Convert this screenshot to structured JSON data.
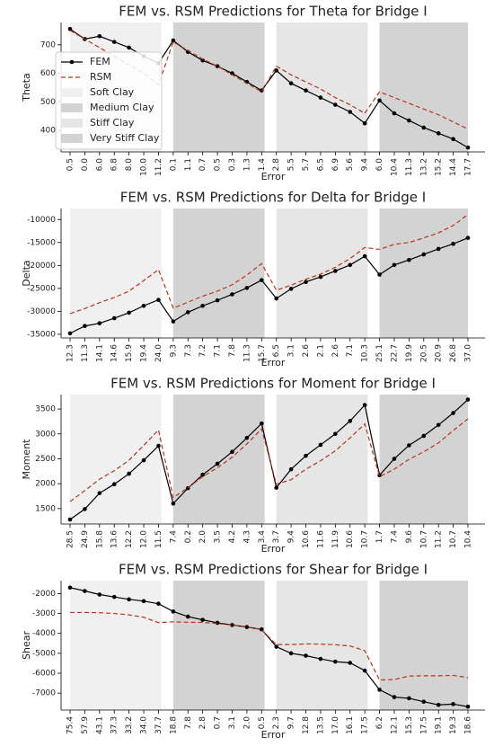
{
  "chart_data": [
    {
      "type": "line",
      "title": "FEM vs. RSM Predictions for Theta for Bridge I",
      "x_label": "Error",
      "y_label": "Theta",
      "categories": [
        "0.5",
        "0.0",
        "6.0",
        "6.8",
        "8.0",
        "10.0",
        "11.2",
        "0.1",
        "1.1",
        "0.7",
        "0.5",
        "0.3",
        "1.3",
        "1.4",
        "2.8",
        "5.5",
        "5.7",
        "6.5",
        "6.9",
        "5.6",
        "9.4",
        "6.0",
        "10.4",
        "11.3",
        "13.2",
        "15.2",
        "14.4",
        "17.7"
      ],
      "series": [
        {
          "name": "FEM",
          "color": "#000000",
          "style": "solid-marker",
          "values": [
            755,
            720,
            730,
            710,
            690,
            660,
            635,
            715,
            675,
            645,
            625,
            600,
            570,
            540,
            610,
            565,
            540,
            515,
            490,
            465,
            425,
            505,
            460,
            435,
            410,
            390,
            370,
            340
          ]
        },
        {
          "name": "RSM",
          "color": "#b8341b",
          "style": "dashed",
          "values": [
            750,
            720,
            690,
            660,
            630,
            600,
            560,
            710,
            680,
            650,
            625,
            595,
            565,
            535,
            625,
            595,
            570,
            545,
            515,
            490,
            460,
            535,
            515,
            495,
            475,
            455,
            430,
            405
          ]
        }
      ],
      "regions": [
        {
          "name": "Soft Clay",
          "color": "#f0f0f0"
        },
        {
          "name": "Medium Clay",
          "color": "#d3d3d3"
        },
        {
          "name": "Stiff Clay",
          "color": "#e6e6e6"
        },
        {
          "name": "Very Stiff Clay",
          "color": "#d3d3d3"
        }
      ],
      "legend": "upper left",
      "ylim": [
        325,
        778
      ],
      "yticks": [
        400,
        500,
        600,
        700
      ]
    },
    {
      "type": "line",
      "title": "FEM vs. RSM Predictions for Delta for Bridge I",
      "x_label": "Error",
      "y_label": "Delta",
      "categories": [
        "12.3",
        "11.3",
        "14.1",
        "14.6",
        "15.9",
        "19.4",
        "24.0",
        "9.3",
        "7.3",
        "7.2",
        "7.1",
        "7.8",
        "11.3",
        "15.7",
        "6.5",
        "3.1",
        "2.6",
        "2.1",
        "2.6",
        "7.1",
        "10.3",
        "25.1",
        "22.7",
        "19.9",
        "20.5",
        "20.9",
        "26.8",
        "37.0"
      ],
      "series": [
        {
          "name": "FEM",
          "color": "#000000",
          "style": "solid-marker",
          "values": [
            -34800,
            -33200,
            -32600,
            -31500,
            -30300,
            -28800,
            -27500,
            -32200,
            -30200,
            -28800,
            -27600,
            -26300,
            -24900,
            -23200,
            -27200,
            -25100,
            -23600,
            -22500,
            -21200,
            -19900,
            -18000,
            -22000,
            -19900,
            -18800,
            -17600,
            -16400,
            -15300,
            -14000
          ]
        },
        {
          "name": "RSM",
          "color": "#b8341b",
          "style": "dashed",
          "values": [
            -30500,
            -29400,
            -28100,
            -27000,
            -25600,
            -23300,
            -20900,
            -29300,
            -28000,
            -26700,
            -25600,
            -24200,
            -22100,
            -19600,
            -25400,
            -24300,
            -23000,
            -21900,
            -20400,
            -18500,
            -16100,
            -16500,
            -15400,
            -15000,
            -14000,
            -12900,
            -11300,
            -8900
          ]
        }
      ],
      "ylim": [
        -35800,
        -7600
      ],
      "yticks": [
        -35000,
        -30000,
        -25000,
        -20000,
        -15000,
        -10000
      ]
    },
    {
      "type": "line",
      "title": "FEM vs. RSM Predictions for Moment for Bridge I",
      "x_label": "Error",
      "y_label": "Moment",
      "categories": [
        "28.5",
        "24.9",
        "15.8",
        "13.6",
        "12.2",
        "12.0",
        "11.5",
        "7.4",
        "0.2",
        "2.0",
        "3.5",
        "4.2",
        "4.3",
        "3.4",
        "3.7",
        "9.4",
        "10.6",
        "11.6",
        "11.9",
        "10.6",
        "10.7",
        "1.7",
        "7.4",
        "9.6",
        "10.7",
        "11.2",
        "10.7",
        "10.4"
      ],
      "series": [
        {
          "name": "FEM",
          "color": "#000000",
          "style": "solid-marker",
          "values": [
            1280,
            1490,
            1810,
            1990,
            2200,
            2470,
            2760,
            1600,
            1910,
            2180,
            2400,
            2640,
            2920,
            3210,
            1920,
            2290,
            2560,
            2780,
            3000,
            3260,
            3580,
            2170,
            2500,
            2770,
            2960,
            3180,
            3420,
            3690
          ]
        },
        {
          "name": "RSM",
          "color": "#b8341b",
          "style": "dashed",
          "values": [
            1640,
            1860,
            2090,
            2260,
            2470,
            2770,
            3080,
            1720,
            1920,
            2140,
            2320,
            2530,
            2800,
            3100,
            1990,
            2080,
            2290,
            2460,
            2660,
            2920,
            3200,
            2140,
            2290,
            2490,
            2640,
            2820,
            3070,
            3300
          ]
        }
      ],
      "ylim": [
        1190,
        3790
      ],
      "yticks": [
        1500,
        2000,
        2500,
        3000,
        3500
      ]
    },
    {
      "type": "line",
      "title": "FEM vs. RSM Predictions for Shear for Bridge I",
      "x_label": "Error",
      "y_label": "Shear",
      "categories": [
        "75.4",
        "57.9",
        "43.1",
        "37.3",
        "33.2",
        "34.0",
        "37.7",
        "18.8",
        "7.8",
        "2.8",
        "0.7",
        "3.1",
        "2.0",
        "0.5",
        "2.3",
        "9.7",
        "12.8",
        "13.5",
        "17.0",
        "16.1",
        "17.5",
        "6.2",
        "12.1",
        "15.3",
        "17.5",
        "19.1",
        "19.3",
        "18.6"
      ],
      "series": [
        {
          "name": "FEM",
          "color": "#000000",
          "style": "solid-marker",
          "values": [
            -1700,
            -1870,
            -2050,
            -2170,
            -2290,
            -2380,
            -2510,
            -2900,
            -3160,
            -3320,
            -3470,
            -3580,
            -3680,
            -3800,
            -4670,
            -5000,
            -5120,
            -5280,
            -5420,
            -5480,
            -5870,
            -6830,
            -7200,
            -7260,
            -7430,
            -7590,
            -7550,
            -7680
          ]
        },
        {
          "name": "RSM",
          "color": "#b8341b",
          "style": "dashed",
          "values": [
            -2950,
            -2950,
            -2960,
            -3000,
            -3070,
            -3190,
            -3460,
            -3420,
            -3440,
            -3450,
            -3500,
            -3590,
            -3660,
            -3820,
            -4560,
            -4560,
            -4530,
            -4540,
            -4570,
            -4630,
            -4870,
            -6340,
            -6320,
            -6140,
            -6130,
            -6130,
            -6110,
            -6220
          ]
        }
      ],
      "ylim": [
        -7850,
        -1350
      ],
      "yticks": [
        -7000,
        -6000,
        -5000,
        -4000,
        -3000,
        -2000
      ]
    }
  ]
}
